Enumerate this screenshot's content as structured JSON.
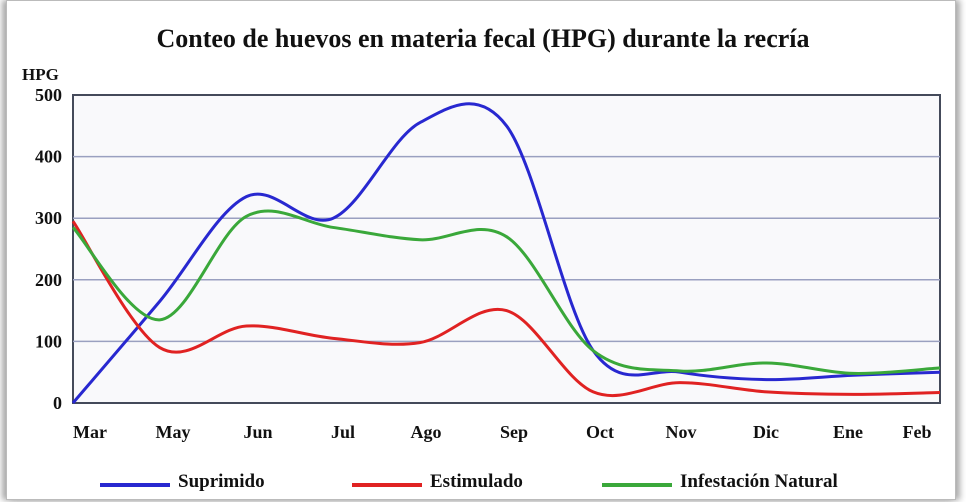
{
  "chart_data": {
    "type": "line",
    "title": "Conteo de huevos en materia fecal (HPG) durante la recría",
    "ylabel": "HPG",
    "xlabel": "",
    "categories": [
      "Mar",
      "May",
      "Jun",
      "Jul",
      "Ago",
      "Sep",
      "Oct",
      "Nov",
      "Dic",
      "Ene",
      "Feb"
    ],
    "ylim": [
      0,
      500
    ],
    "yticks": [
      0,
      100,
      200,
      300,
      400,
      500
    ],
    "grid": true,
    "legend_position": "bottom",
    "series": [
      {
        "name": "Suprimido",
        "color": "#2828d0",
        "values": [
          0,
          165,
          335,
          300,
          455,
          450,
          85,
          50,
          38,
          45,
          50
        ]
      },
      {
        "name": "Estimulado",
        "color": "#e02222",
        "values": [
          295,
          90,
          125,
          105,
          98,
          150,
          18,
          33,
          18,
          14,
          17
        ]
      },
      {
        "name": "Infestación Natural",
        "color": "#3aa83a",
        "values": [
          285,
          135,
          303,
          285,
          265,
          270,
          85,
          52,
          65,
          48,
          57
        ]
      }
    ]
  }
}
